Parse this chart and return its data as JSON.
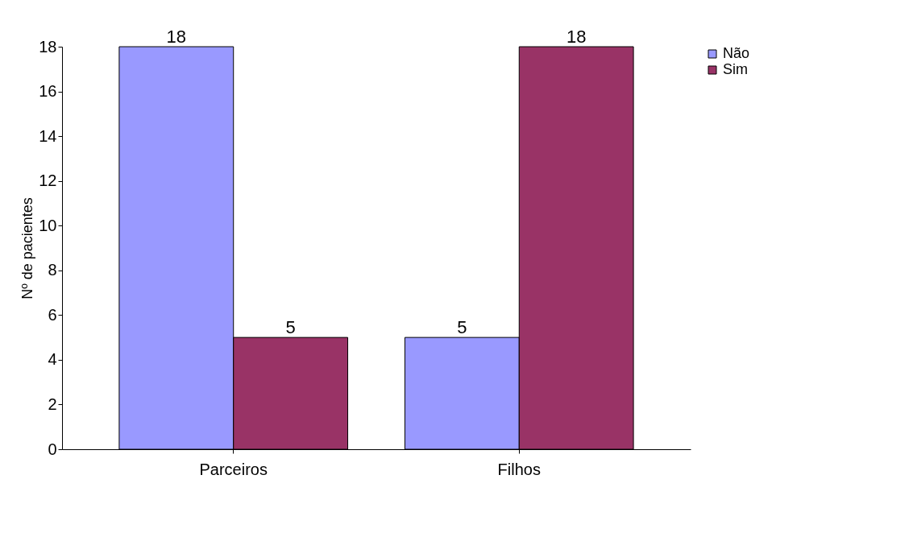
{
  "chart_data": {
    "type": "bar",
    "ylabel": "Nº de pacientes",
    "categories": [
      "Parceiros",
      "Filhos"
    ],
    "series": [
      {
        "name": "Não",
        "color": "#9999ff",
        "values": [
          18,
          5
        ]
      },
      {
        "name": "Sim",
        "color": "#993366",
        "values": [
          5,
          18
        ]
      }
    ],
    "ylim": [
      0,
      18
    ],
    "yticks": [
      0,
      2,
      4,
      6,
      8,
      10,
      12,
      14,
      16,
      18
    ],
    "data_labels": true,
    "legend": "right",
    "grid": false
  }
}
